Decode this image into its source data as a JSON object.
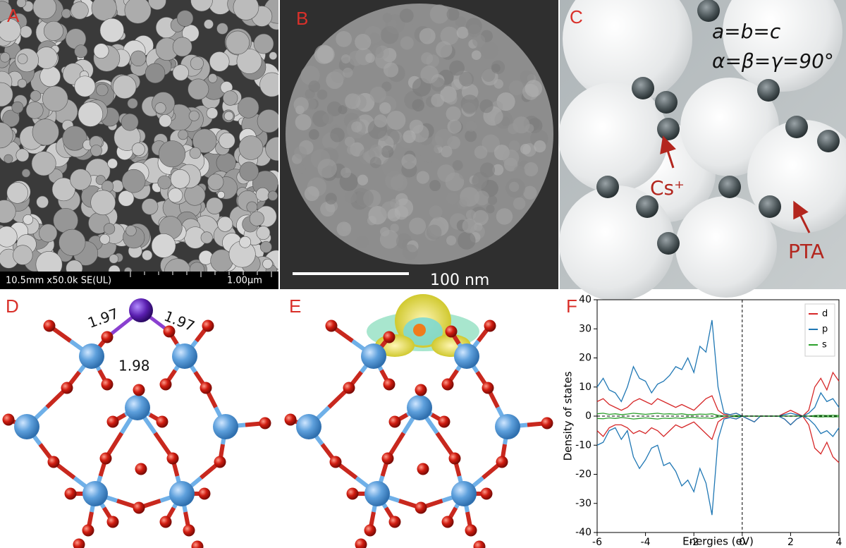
{
  "panels": {
    "A": {
      "label": "A",
      "info": "10.5mm x50.0k SE(UL)",
      "scale": "1.00µm"
    },
    "B": {
      "label": "B",
      "scale": "100 nm"
    },
    "C": {
      "label": "C",
      "lattice": "a=b=c",
      "angles": "α=β=γ=90°",
      "cation": "Cs⁺",
      "anion": "PTA"
    },
    "D": {
      "label": "D",
      "bond_lengths": [
        1.97,
        1.97,
        1.98
      ]
    },
    "E": {
      "label": "E"
    },
    "F": {
      "label": "F"
    }
  },
  "chart_data": {
    "type": "line",
    "xlabel": "Energies (eV)",
    "ylabel": "Density of states",
    "x": [
      -6,
      -5.75,
      -5.5,
      -5.25,
      -5,
      -4.75,
      -4.5,
      -4.25,
      -4,
      -3.75,
      -3.5,
      -3.25,
      -3,
      -2.75,
      -2.5,
      -2.25,
      -2,
      -1.75,
      -1.5,
      -1.25,
      -1,
      -0.75,
      -0.5,
      -0.25,
      0,
      0.25,
      0.5,
      0.75,
      1,
      1.25,
      1.5,
      1.75,
      2,
      2.25,
      2.5,
      2.75,
      3,
      3.25,
      3.5,
      3.75,
      4
    ],
    "series": [
      {
        "name": "d",
        "color": "#d62728",
        "values": [
          5,
          6,
          4,
          3,
          2,
          3,
          5,
          6,
          5,
          4,
          6,
          5,
          4,
          3,
          4,
          3,
          2,
          4,
          6,
          7,
          2,
          0.5,
          0.5,
          1,
          0,
          0,
          0,
          0,
          0,
          0,
          0,
          1,
          2,
          1,
          0,
          2,
          10,
          13,
          9,
          15,
          12
        ],
        "values_down": [
          -5,
          -7,
          -4,
          -3,
          -3,
          -4,
          -6,
          -5,
          -6,
          -4,
          -5,
          -7,
          -5,
          -3,
          -4,
          -3,
          -2,
          -4,
          -6,
          -8,
          -2,
          -0.5,
          -0.5,
          -1,
          0,
          -1,
          -2,
          0,
          0,
          0,
          0,
          -1,
          -3,
          -1,
          0,
          -3,
          -11,
          -13,
          -9,
          -14,
          -16
        ]
      },
      {
        "name": "p",
        "color": "#1f77b4",
        "values": [
          10,
          13,
          9,
          8,
          5,
          10,
          17,
          13,
          12,
          8,
          11,
          12,
          14,
          17,
          16,
          20,
          15,
          24,
          22,
          33,
          10,
          1,
          0.5,
          1,
          0,
          0,
          0,
          0,
          0,
          0,
          0,
          0.5,
          1,
          0.5,
          0,
          1,
          3,
          8,
          5,
          6,
          3
        ],
        "values_down": [
          -10,
          -9,
          -5,
          -4,
          -8,
          -5,
          -14,
          -18,
          -15,
          -11,
          -10,
          -17,
          -16,
          -19,
          -24,
          -22,
          -26,
          -18,
          -23,
          -34,
          -8,
          -1,
          -0.5,
          -1,
          0,
          -1,
          -2,
          0,
          0,
          0,
          0,
          -1,
          -3,
          -1,
          0,
          -1,
          -3,
          -6,
          -5,
          -7,
          -4
        ]
      },
      {
        "name": "s",
        "color": "#2ca02c",
        "values": [
          0.8,
          1,
          0.6,
          0.8,
          0.5,
          0.7,
          1,
          0.8,
          0.6,
          0.8,
          1,
          0.7,
          0.8,
          0.6,
          0.8,
          0.5,
          0.5,
          0.7,
          0.6,
          0.8,
          0.3,
          0,
          0,
          0.2,
          0,
          0,
          0,
          0,
          0,
          0,
          0,
          0,
          0,
          0,
          0,
          0,
          0.2,
          0.3,
          0.2,
          0.3,
          0.2
        ],
        "values_down": [
          -0.8,
          -0.9,
          -0.6,
          -0.8,
          -0.5,
          -0.7,
          -1,
          -0.8,
          -0.6,
          -0.8,
          -1,
          -0.7,
          -0.8,
          -0.6,
          -0.8,
          -0.5,
          -0.5,
          -0.7,
          -0.6,
          -0.8,
          -0.3,
          0,
          0,
          -0.2,
          0,
          0,
          0,
          0,
          0,
          0,
          0,
          0,
          0,
          0,
          0,
          0,
          -0.2,
          -0.3,
          -0.2,
          -0.3,
          -0.2
        ]
      }
    ],
    "xlim": [
      -6,
      4
    ],
    "xticks": [
      -6,
      -4,
      -2,
      0,
      2,
      4
    ],
    "ylim": [
      -40,
      40
    ],
    "yticks": [
      -40,
      -30,
      -20,
      -10,
      0,
      10,
      20,
      30,
      40
    ],
    "legend": "upper right"
  }
}
